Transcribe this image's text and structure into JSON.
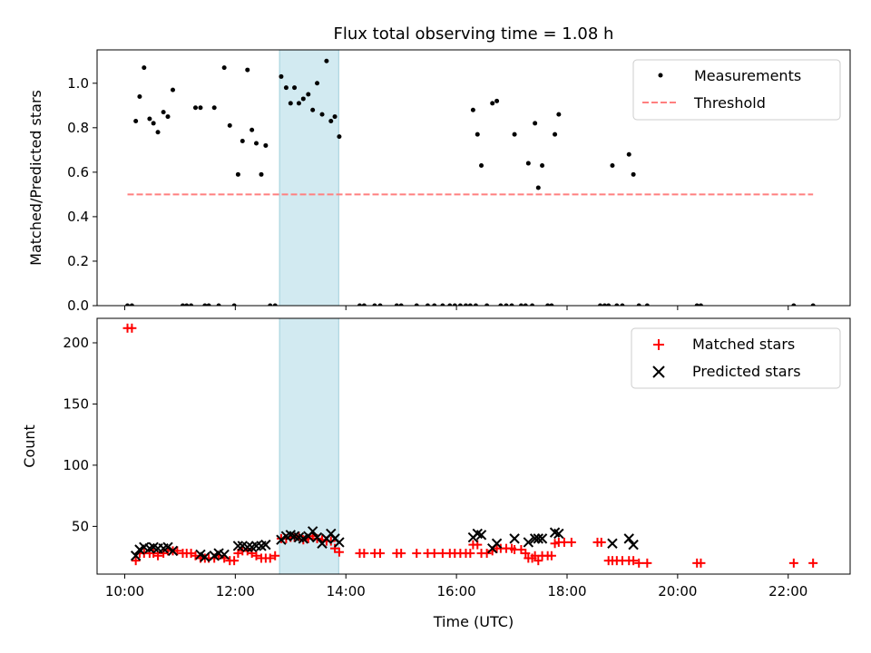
{
  "title": "Flux total observing time = 1.08 h",
  "colors": {
    "measure": "#000000",
    "threshold": "#ff7f7f",
    "matched": "#ff0000",
    "predicted": "#000000",
    "highlight": "#add8e6"
  },
  "chart_data": [
    {
      "type": "scatter",
      "ylabel": "Matched/Predicted stars",
      "xlim": [
        9.5,
        23.12
      ],
      "ylim": [
        0,
        1.15
      ],
      "yticks": [
        0.0,
        0.2,
        0.4,
        0.6,
        0.8,
        1.0
      ],
      "ytick_labels": [
        "0.0",
        "0.2",
        "0.4",
        "0.6",
        "0.8",
        "1.0"
      ],
      "legend_position": "top-right",
      "highlight_span": [
        12.8,
        13.87
      ],
      "series": [
        {
          "name": "Measurements",
          "style": "dot",
          "points": [
            [
              10.05,
              0
            ],
            [
              10.13,
              0
            ],
            [
              10.2,
              0.83
            ],
            [
              10.27,
              0.94
            ],
            [
              10.35,
              1.07
            ],
            [
              10.45,
              0.84
            ],
            [
              10.52,
              0.82
            ],
            [
              10.6,
              0.78
            ],
            [
              10.7,
              0.87
            ],
            [
              10.78,
              0.85
            ],
            [
              10.87,
              0.97
            ],
            [
              11.05,
              0
            ],
            [
              11.12,
              0
            ],
            [
              11.2,
              0
            ],
            [
              11.28,
              0.89
            ],
            [
              11.37,
              0.89
            ],
            [
              11.45,
              0
            ],
            [
              11.52,
              0
            ],
            [
              11.62,
              0.89
            ],
            [
              11.7,
              0
            ],
            [
              11.8,
              1.07
            ],
            [
              11.9,
              0.81
            ],
            [
              11.98,
              0
            ],
            [
              12.05,
              0.59
            ],
            [
              12.13,
              0.74
            ],
            [
              12.22,
              1.06
            ],
            [
              12.3,
              0.79
            ],
            [
              12.38,
              0.73
            ],
            [
              12.47,
              0.59
            ],
            [
              12.55,
              0.72
            ],
            [
              12.63,
              0
            ],
            [
              12.72,
              0
            ],
            [
              12.83,
              1.03
            ],
            [
              12.92,
              0.98
            ],
            [
              13.0,
              0.91
            ],
            [
              13.07,
              0.98
            ],
            [
              13.15,
              0.91
            ],
            [
              13.23,
              0.93
            ],
            [
              13.32,
              0.95
            ],
            [
              13.4,
              0.88
            ],
            [
              13.48,
              1.0
            ],
            [
              13.57,
              0.86
            ],
            [
              13.65,
              1.1
            ],
            [
              13.73,
              0.83
            ],
            [
              13.8,
              0.85
            ],
            [
              13.88,
              0.76
            ],
            [
              14.25,
              0
            ],
            [
              14.33,
              0
            ],
            [
              14.52,
              0
            ],
            [
              14.62,
              0
            ],
            [
              14.92,
              0
            ],
            [
              15.0,
              0
            ],
            [
              15.28,
              0
            ],
            [
              15.48,
              0
            ],
            [
              15.6,
              0
            ],
            [
              15.75,
              0
            ],
            [
              15.88,
              0
            ],
            [
              15.97,
              0
            ],
            [
              16.07,
              0
            ],
            [
              16.17,
              0
            ],
            [
              16.25,
              0
            ],
            [
              16.3,
              0.88
            ],
            [
              16.35,
              0
            ],
            [
              16.38,
              0.77
            ],
            [
              16.45,
              0.63
            ],
            [
              16.55,
              0
            ],
            [
              16.65,
              0.91
            ],
            [
              16.73,
              0.92
            ],
            [
              16.8,
              0
            ],
            [
              16.9,
              0
            ],
            [
              17.0,
              0
            ],
            [
              17.05,
              0.77
            ],
            [
              17.17,
              0
            ],
            [
              17.25,
              0
            ],
            [
              17.3,
              0.64
            ],
            [
              17.37,
              0
            ],
            [
              17.42,
              0.82
            ],
            [
              17.48,
              0.53
            ],
            [
              17.55,
              0.63
            ],
            [
              17.65,
              0
            ],
            [
              17.72,
              0
            ],
            [
              17.78,
              0.77
            ],
            [
              17.85,
              0.86
            ],
            [
              18.6,
              0
            ],
            [
              18.68,
              0
            ],
            [
              18.75,
              0
            ],
            [
              18.82,
              0.63
            ],
            [
              18.9,
              0
            ],
            [
              19.0,
              0
            ],
            [
              19.12,
              0.68
            ],
            [
              19.2,
              0.59
            ],
            [
              19.3,
              0
            ],
            [
              19.45,
              0
            ],
            [
              20.35,
              0
            ],
            [
              20.42,
              0
            ],
            [
              22.1,
              0
            ],
            [
              22.45,
              0
            ]
          ]
        },
        {
          "name": "Threshold",
          "style": "dashed",
          "points": [
            [
              10.05,
              0.5
            ],
            [
              22.45,
              0.5
            ]
          ]
        }
      ]
    },
    {
      "type": "scatter",
      "ylabel": "Count",
      "xlabel": "Time (UTC)",
      "xlim": [
        9.5,
        23.12
      ],
      "ylim": [
        11,
        220
      ],
      "yticks": [
        50,
        100,
        150,
        200
      ],
      "ytick_labels": [
        "50",
        "100",
        "150",
        "200"
      ],
      "xticks": [
        10,
        12,
        14,
        16,
        18,
        20,
        22
      ],
      "xtick_labels": [
        "10:00",
        "12:00",
        "14:00",
        "16:00",
        "18:00",
        "20:00",
        "22:00"
      ],
      "legend_position": "top-right",
      "highlight_span": [
        12.8,
        13.87
      ],
      "series": [
        {
          "name": "Matched stars",
          "style": "plus",
          "points": [
            [
              10.05,
              212
            ],
            [
              10.13,
              212
            ],
            [
              10.2,
              22
            ],
            [
              10.27,
              28
            ],
            [
              10.35,
              28
            ],
            [
              10.45,
              28
            ],
            [
              10.52,
              28
            ],
            [
              10.6,
              26
            ],
            [
              10.7,
              28
            ],
            [
              10.78,
              30
            ],
            [
              10.87,
              30
            ],
            [
              10.95,
              30
            ],
            [
              11.05,
              28
            ],
            [
              11.12,
              28
            ],
            [
              11.2,
              28
            ],
            [
              11.28,
              26
            ],
            [
              11.37,
              24
            ],
            [
              11.45,
              24
            ],
            [
              11.52,
              24
            ],
            [
              11.62,
              24
            ],
            [
              11.7,
              26
            ],
            [
              11.8,
              24
            ],
            [
              11.9,
              22
            ],
            [
              11.98,
              22
            ],
            [
              12.05,
              28
            ],
            [
              12.13,
              30
            ],
            [
              12.22,
              30
            ],
            [
              12.3,
              28
            ],
            [
              12.38,
              26
            ],
            [
              12.47,
              24
            ],
            [
              12.55,
              24
            ],
            [
              12.63,
              24
            ],
            [
              12.72,
              26
            ],
            [
              12.83,
              40
            ],
            [
              12.92,
              40
            ],
            [
              13.0,
              41
            ],
            [
              13.07,
              41
            ],
            [
              13.15,
              42
            ],
            [
              13.23,
              39
            ],
            [
              13.32,
              40
            ],
            [
              13.4,
              42
            ],
            [
              13.48,
              40
            ],
            [
              13.57,
              39
            ],
            [
              13.65,
              38
            ],
            [
              13.73,
              38
            ],
            [
              13.8,
              32
            ],
            [
              13.88,
              29
            ],
            [
              14.25,
              28
            ],
            [
              14.33,
              28
            ],
            [
              14.52,
              28
            ],
            [
              14.62,
              28
            ],
            [
              14.92,
              28
            ],
            [
              15.0,
              28
            ],
            [
              15.28,
              28
            ],
            [
              15.48,
              28
            ],
            [
              15.6,
              28
            ],
            [
              15.75,
              28
            ],
            [
              15.88,
              28
            ],
            [
              15.97,
              28
            ],
            [
              16.07,
              28
            ],
            [
              16.17,
              28
            ],
            [
              16.25,
              28
            ],
            [
              16.3,
              35
            ],
            [
              16.38,
              35
            ],
            [
              16.45,
              28
            ],
            [
              16.55,
              28
            ],
            [
              16.65,
              30
            ],
            [
              16.73,
              32
            ],
            [
              16.8,
              32
            ],
            [
              16.9,
              32
            ],
            [
              17.0,
              32
            ],
            [
              17.05,
              31
            ],
            [
              17.17,
              31
            ],
            [
              17.25,
              28
            ],
            [
              17.3,
              24
            ],
            [
              17.37,
              24
            ],
            [
              17.42,
              26
            ],
            [
              17.48,
              22
            ],
            [
              17.55,
              26
            ],
            [
              17.65,
              26
            ],
            [
              17.72,
              26
            ],
            [
              17.78,
              36
            ],
            [
              17.85,
              37
            ],
            [
              17.95,
              37
            ],
            [
              18.08,
              37
            ],
            [
              18.55,
              37
            ],
            [
              18.62,
              37
            ],
            [
              18.75,
              22
            ],
            [
              18.82,
              22
            ],
            [
              18.9,
              22
            ],
            [
              19.0,
              22
            ],
            [
              19.12,
              22
            ],
            [
              19.2,
              22
            ],
            [
              19.3,
              20
            ],
            [
              19.45,
              20
            ],
            [
              20.35,
              20
            ],
            [
              20.42,
              20
            ],
            [
              22.1,
              20
            ],
            [
              22.45,
              20
            ]
          ]
        },
        {
          "name": "Predicted stars",
          "style": "x",
          "points": [
            [
              10.2,
              26
            ],
            [
              10.27,
              31
            ],
            [
              10.35,
              33
            ],
            [
              10.45,
              32
            ],
            [
              10.52,
              33
            ],
            [
              10.6,
              32
            ],
            [
              10.7,
              32
            ],
            [
              10.78,
              33
            ],
            [
              10.87,
              30
            ],
            [
              11.37,
              27
            ],
            [
              11.45,
              25
            ],
            [
              11.62,
              26
            ],
            [
              11.7,
              28
            ],
            [
              11.8,
              27
            ],
            [
              12.05,
              34
            ],
            [
              12.13,
              34
            ],
            [
              12.22,
              33
            ],
            [
              12.3,
              33
            ],
            [
              12.38,
              34
            ],
            [
              12.47,
              34
            ],
            [
              12.55,
              35
            ],
            [
              12.83,
              39
            ],
            [
              12.92,
              42
            ],
            [
              13.0,
              43
            ],
            [
              13.07,
              42
            ],
            [
              13.15,
              41
            ],
            [
              13.23,
              40
            ],
            [
              13.32,
              42
            ],
            [
              13.4,
              46
            ],
            [
              13.48,
              41
            ],
            [
              13.57,
              36
            ],
            [
              13.65,
              40
            ],
            [
              13.73,
              44
            ],
            [
              13.8,
              40
            ],
            [
              13.88,
              37
            ],
            [
              16.3,
              41
            ],
            [
              16.38,
              44
            ],
            [
              16.45,
              43
            ],
            [
              16.65,
              32
            ],
            [
              16.73,
              36
            ],
            [
              17.05,
              40
            ],
            [
              17.3,
              37
            ],
            [
              17.42,
              40
            ],
            [
              17.48,
              40
            ],
            [
              17.55,
              40
            ],
            [
              17.78,
              45
            ],
            [
              17.85,
              44
            ],
            [
              18.82,
              36
            ],
            [
              19.12,
              40
            ],
            [
              19.2,
              35
            ]
          ]
        }
      ]
    }
  ]
}
